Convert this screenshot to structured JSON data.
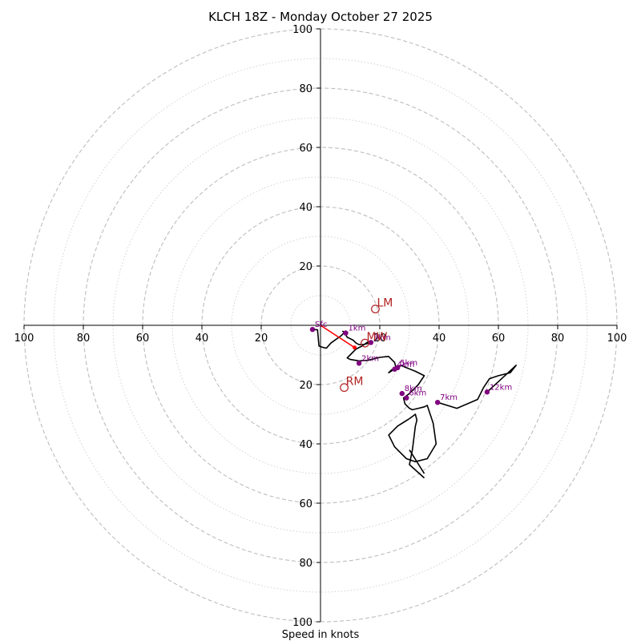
{
  "chart_data": {
    "type": "hodograph",
    "title": "KLCH 18Z - Monday October 27 2025",
    "xlabel": "Speed in knots",
    "range": [
      -100,
      100
    ],
    "rings_major": [
      20,
      40,
      60,
      80,
      100
    ],
    "rings_minor": [
      10,
      30,
      50,
      70,
      90
    ],
    "x_ticks": [
      "100",
      "80",
      "60",
      "40",
      "20",
      "20",
      "40",
      "60",
      "80",
      "100"
    ],
    "x_tick_values": [
      -100,
      -80,
      -60,
      -40,
      -20,
      20,
      40,
      60,
      80,
      100
    ],
    "y_ticks": [
      "100",
      "80",
      "60",
      "40",
      "20",
      "20",
      "40",
      "60",
      "80",
      "100"
    ],
    "y_tick_values": [
      100,
      80,
      60,
      40,
      20,
      -20,
      -40,
      -60,
      -80,
      -100
    ],
    "hodograph_u": [
      -2.7,
      -1,
      -0.5,
      1,
      2,
      3.5,
      7,
      8,
      7.5,
      8,
      9,
      11,
      12,
      13,
      14.5,
      17,
      16,
      14,
      12,
      10,
      9,
      10,
      13,
      16,
      20,
      22,
      23,
      25,
      25.5,
      24,
      23,
      27,
      32,
      35,
      33,
      30,
      28,
      28.5,
      30,
      31,
      33,
      35,
      36,
      36.5,
      38,
      39,
      36,
      32,
      29,
      25,
      23,
      26,
      30,
      32,
      32.5,
      32,
      31,
      30,
      35
    ],
    "hodograph_v": [
      -1.4,
      -1.5,
      -7,
      -7.5,
      -7.7,
      -6,
      -3.5,
      -2.4,
      -2,
      -2.3,
      -4,
      -5,
      -6,
      -6.5,
      -6.5,
      -5.8,
      -5.6,
      -7,
      -8,
      -10,
      -11,
      -11.5,
      -12,
      -11.8,
      -10.8,
      -10.6,
      -10.5,
      -12.5,
      -14.5,
      -15,
      -16,
      -13.5,
      -15.5,
      -17,
      -20,
      -23,
      -24.5,
      -26.5,
      -28,
      -28.5,
      -28,
      -27.5,
      -27,
      -28.5,
      -33,
      -40,
      -45,
      -46,
      -45,
      -41,
      -37,
      -34,
      -31.5,
      -30,
      -32,
      -34,
      -42,
      -47,
      -51.5
    ],
    "hodograph_tail_u": [
      30,
      35
    ],
    "hodograph_tail_v": [
      -42,
      -50
    ],
    "upper_segment_u": [
      39.5,
      47,
      55,
      56,
      57.5,
      60,
      64,
      66,
      56.2
    ],
    "upper_segment_v": [
      -26,
      -24,
      -22.5,
      -20,
      -18,
      -17.5,
      -16,
      -14,
      -22.5
    ],
    "upper_segment_path_u": [
      39.5,
      46,
      53,
      55,
      57,
      60,
      64,
      66,
      56.2
    ],
    "upper_segment_path_v": [
      -26,
      -28,
      -25,
      -21,
      -18,
      -17,
      -16,
      -13.5,
      -22.5
    ],
    "height_markers": [
      {
        "label": "Sfc",
        "u": -2.7,
        "v": -1.4
      },
      {
        "label": "1km",
        "u": 8.5,
        "v": -2.6
      },
      {
        "label": "2km",
        "u": 13,
        "v": -12.8
      },
      {
        "label": "3km",
        "u": 17,
        "v": -5.8
      },
      {
        "label": "4km",
        "u": 25,
        "v": -14.8
      },
      {
        "label": "5km",
        "u": 26,
        "v": -14.3
      },
      {
        "label": "6km",
        "u": 29,
        "v": -24.5
      },
      {
        "label": "7km",
        "u": 39.5,
        "v": -26
      },
      {
        "label": "8km",
        "u": 27.5,
        "v": -23
      },
      {
        "label": "12km",
        "u": 56.2,
        "v": -22.5
      }
    ],
    "shear_vector": {
      "from_u": 0,
      "from_v": 0,
      "to_u": 11.5,
      "to_v": -7.5,
      "color": "#ff0000"
    },
    "storm_motion": [
      {
        "label": "LM",
        "u": 18.5,
        "v": 5.5
      },
      {
        "label": "MW",
        "u": 15,
        "v": -6
      },
      {
        "label": "RM",
        "u": 8,
        "v": -21
      }
    ],
    "colors": {
      "hodograph": "#000000",
      "markers": "#800080",
      "storm_motion": "#b22222",
      "shear": "#ff0000",
      "rings": "#bdbdbd"
    }
  }
}
